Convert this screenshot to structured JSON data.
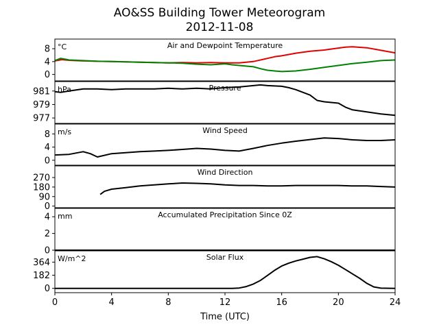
{
  "chart_data": {
    "type": "line",
    "title": "AO&SS Building Tower Meteorogram",
    "subtitle": "2012-11-08",
    "xlabel": "Time (UTC)",
    "xlim": [
      0,
      24
    ],
    "xticks": [
      0,
      4,
      8,
      12,
      16,
      20,
      24
    ],
    "panels": [
      {
        "title": "Air and Dewpoint Temperature",
        "unit": "°C",
        "ylim": [
          -2,
          11
        ],
        "yticks": [
          0,
          4,
          8
        ],
        "series": [
          {
            "color": "#e00000",
            "x": [
              0,
              0.5,
              1,
              2,
              3,
              4,
              5,
              6,
              7,
              8,
              9,
              10,
              11,
              12,
              13,
              14,
              15,
              15.5,
              16,
              17,
              18,
              19,
              20,
              20.5,
              21,
              22,
              23,
              24
            ],
            "y": [
              4.2,
              4.6,
              4.4,
              4.2,
              4.1,
              4.0,
              3.9,
              3.8,
              3.7,
              3.6,
              3.7,
              3.6,
              3.7,
              3.6,
              3.6,
              4.0,
              5.0,
              5.5,
              5.8,
              6.6,
              7.2,
              7.6,
              8.2,
              8.5,
              8.6,
              8.3,
              7.5,
              6.7
            ]
          },
          {
            "color": "#008000",
            "x": [
              0,
              0.4,
              0.8,
              1,
              2,
              3,
              4,
              5,
              6,
              7,
              8,
              9,
              10,
              11,
              12,
              12.5,
              13,
              14,
              14.5,
              15,
              15.5,
              16,
              17,
              18,
              19,
              20,
              21,
              22,
              23,
              24
            ],
            "y": [
              4.3,
              5.0,
              4.7,
              4.5,
              4.3,
              4.1,
              4.0,
              3.9,
              3.8,
              3.7,
              3.6,
              3.5,
              3.2,
              3.0,
              3.3,
              3.0,
              2.8,
              2.4,
              1.8,
              1.3,
              1.1,
              0.9,
              1.1,
              1.6,
              2.2,
              2.8,
              3.4,
              3.8,
              4.3,
              4.5
            ]
          }
        ]
      },
      {
        "title": "Pressure",
        "unit": "hPa",
        "ylim": [
          976.2,
          982.4
        ],
        "yticks": [
          977,
          979,
          981
        ],
        "series": [
          {
            "color": "#000000",
            "x": [
              0,
              0.4,
              1,
              2,
              3,
              4,
              5,
              6,
              7,
              8,
              9,
              10,
              11,
              12,
              13,
              14,
              14.5,
              15,
              16,
              16.5,
              17,
              18,
              18.5,
              19,
              20,
              20.5,
              21,
              22,
              23,
              24
            ],
            "y": [
              980.9,
              980.8,
              981.0,
              981.3,
              981.3,
              981.2,
              981.3,
              981.3,
              981.3,
              981.4,
              981.3,
              981.4,
              981.3,
              981.5,
              981.6,
              981.8,
              981.9,
              981.8,
              981.7,
              981.5,
              981.2,
              980.4,
              979.6,
              979.4,
              979.2,
              978.6,
              978.2,
              977.9,
              977.6,
              977.4
            ]
          }
        ]
      },
      {
        "title": "Wind Speed",
        "unit": "m/s",
        "ylim": [
          -1.5,
          11
        ],
        "yticks": [
          0,
          4,
          8
        ],
        "series": [
          {
            "color": "#000000",
            "x": [
              0,
              1,
              2,
              2.5,
              3,
              4,
              5,
              6,
              7,
              8,
              9,
              10,
              11,
              12,
              13,
              14,
              15,
              16,
              17,
              18,
              19,
              20,
              21,
              22,
              23,
              24
            ],
            "y": [
              1.6,
              1.8,
              2.6,
              2.0,
              1.0,
              2.0,
              2.3,
              2.6,
              2.8,
              3.0,
              3.3,
              3.6,
              3.4,
              3.0,
              2.8,
              3.6,
              4.5,
              5.2,
              5.8,
              6.3,
              6.8,
              6.6,
              6.2,
              6.0,
              6.0,
              6.2
            ]
          }
        ]
      },
      {
        "title": "Wind Direction",
        "unit": "",
        "ylim": [
          -15,
          380
        ],
        "yticks": [
          0,
          90,
          180,
          270
        ],
        "series": [
          {
            "color": "#000000",
            "x": [
              3.2,
              3.5,
              4,
              5,
              6,
              7,
              8,
              9,
              10,
              11,
              12,
              13,
              14,
              15,
              16,
              17,
              18,
              19,
              20,
              21,
              22,
              23,
              24
            ],
            "y": [
              110,
              140,
              160,
              175,
              190,
              200,
              210,
              218,
              215,
              210,
              200,
              195,
              195,
              190,
              190,
              195,
              195,
              195,
              195,
              190,
              190,
              185,
              180
            ]
          }
        ]
      },
      {
        "title": "Accumulated Precipitation Since 0Z",
        "unit": "mm",
        "ylim": [
          0,
          5
        ],
        "yticks": [
          0,
          2,
          4
        ],
        "series": [
          {
            "color": "#000000",
            "x": [
              0,
              24
            ],
            "y": [
              0,
              0
            ]
          }
        ]
      },
      {
        "title": "Solar Flux",
        "unit": "W/m^2",
        "ylim": [
          -60,
          520
        ],
        "yticks": [
          0,
          182,
          364
        ],
        "series": [
          {
            "color": "#000000",
            "x": [
              0,
              12.5,
              13,
              13.5,
              14,
              14.5,
              15,
              15.5,
              16,
              16.5,
              17,
              17.5,
              18,
              18.5,
              19,
              19.5,
              20,
              20.5,
              21,
              21.5,
              22,
              22.5,
              23,
              24
            ],
            "y": [
              0,
              0,
              5,
              25,
              60,
              110,
              180,
              250,
              310,
              350,
              380,
              405,
              430,
              440,
              410,
              370,
              320,
              260,
              200,
              140,
              70,
              20,
              3,
              0
            ]
          }
        ]
      }
    ]
  }
}
